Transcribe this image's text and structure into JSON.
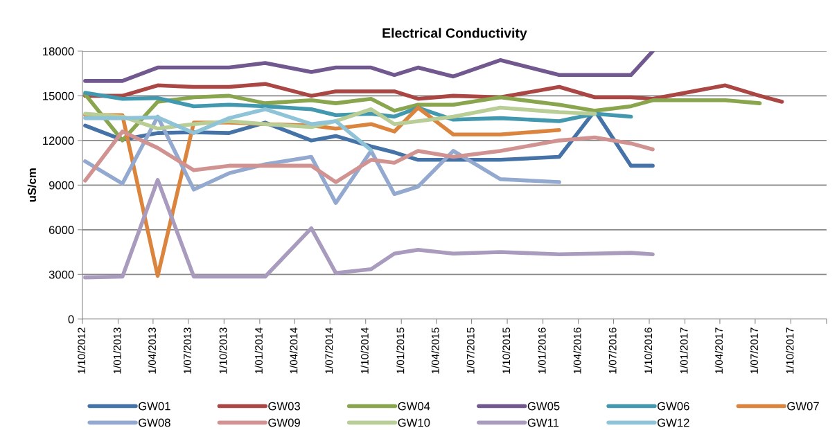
{
  "chart_data": {
    "type": "line",
    "title": "Electrical Conductivity",
    "ylabel": "uS/cm",
    "x": [
      "2012-10-08",
      "2013-01-12",
      "2013-04-13",
      "2013-07-15",
      "2013-10-14",
      "2014-01-15",
      "2014-05-14",
      "2014-07-16",
      "2014-10-15",
      "2014-12-14",
      "2015-02-13",
      "2015-05-15",
      "2015-09-13",
      "2016-02-12",
      "2016-05-14",
      "2016-08-15",
      "2016-10-10",
      "2017-04-15",
      "2017-07-13",
      "2017-09-08"
    ],
    "series": [
      {
        "name": "GW01",
        "color": "#4572a7",
        "values": [
          13000,
          12050,
          12500,
          12550,
          12500,
          13200,
          12000,
          12300,
          11600,
          11200,
          10700,
          10700,
          10700,
          10900,
          14000,
          10300,
          10300,
          null,
          null,
          null
        ]
      },
      {
        "name": "GW03",
        "color": "#aa4643",
        "values": [
          15000,
          15000,
          15700,
          15600,
          15600,
          15800,
          15000,
          15300,
          15300,
          15300,
          14800,
          15000,
          14900,
          15600,
          14900,
          14900,
          14800,
          15700,
          15000,
          14600
        ]
      },
      {
        "name": "GW04",
        "color": "#89a54e",
        "values": [
          15100,
          12000,
          14600,
          14900,
          15000,
          14500,
          14700,
          14500,
          14800,
          14000,
          14400,
          14400,
          14900,
          14400,
          14000,
          14300,
          14700,
          14700,
          14500,
          null
        ]
      },
      {
        "name": "GW05",
        "color": "#71588f",
        "values": [
          16000,
          16000,
          16900,
          16900,
          16900,
          17200,
          16600,
          16900,
          16900,
          16400,
          16900,
          16300,
          17400,
          16400,
          16400,
          16400,
          18000,
          null,
          null,
          null
        ]
      },
      {
        "name": "GW06",
        "color": "#4198af",
        "values": [
          15200,
          14800,
          14850,
          14300,
          14400,
          14300,
          14100,
          13700,
          13800,
          13600,
          14200,
          13400,
          13500,
          13300,
          13800,
          13600,
          null,
          null,
          null,
          null
        ]
      },
      {
        "name": "GW07",
        "color": "#db843d",
        "values": [
          13700,
          13700,
          2900,
          13200,
          13200,
          13100,
          13000,
          12800,
          13100,
          12600,
          14200,
          12400,
          12400,
          12700,
          null,
          null,
          null,
          null,
          null,
          null
        ]
      },
      {
        "name": "GW08",
        "color": "#93a9cf",
        "values": [
          10600,
          9100,
          13600,
          8700,
          9800,
          10400,
          10900,
          7800,
          11300,
          8400,
          8900,
          11300,
          9400,
          9200,
          null,
          null,
          null,
          null,
          null,
          null
        ]
      },
      {
        "name": "GW09",
        "color": "#d19392",
        "values": [
          9300,
          12600,
          11500,
          10000,
          10300,
          10300,
          10300,
          9200,
          10700,
          10500,
          11300,
          10900,
          11300,
          12000,
          12200,
          11800,
          11400,
          null,
          null,
          null
        ]
      },
      {
        "name": "GW10",
        "color": "#b9cd96",
        "values": [
          13800,
          13600,
          12800,
          13100,
          13300,
          13100,
          12900,
          13300,
          14100,
          13100,
          13300,
          13600,
          14200,
          13900,
          13800,
          null,
          null,
          null,
          null,
          null
        ]
      },
      {
        "name": "GW11",
        "color": "#a99bbd",
        "values": [
          2800,
          2850,
          9350,
          2850,
          2850,
          2850,
          6100,
          3100,
          3350,
          4400,
          4650,
          4400,
          4500,
          4350,
          4400,
          4450,
          4350,
          null,
          null,
          null
        ]
      },
      {
        "name": "GW12",
        "color": "#8ec3d8",
        "values": [
          13500,
          13500,
          13550,
          12500,
          13500,
          14100,
          13100,
          13300,
          11350,
          null,
          null,
          null,
          null,
          null,
          null,
          null,
          null,
          null,
          null,
          null
        ]
      }
    ],
    "xlim": [
      "2012-10-01",
      "2018-01-01"
    ],
    "xticks": [
      {
        "value": "2012-10-01",
        "label": "1/10/2012"
      },
      {
        "value": "2013-01-01",
        "label": "1/01/2013"
      },
      {
        "value": "2013-04-01",
        "label": "1/04/2013"
      },
      {
        "value": "2013-07-01",
        "label": "1/07/2013"
      },
      {
        "value": "2013-10-01",
        "label": "1/10/2013"
      },
      {
        "value": "2014-01-01",
        "label": "1/01/2014"
      },
      {
        "value": "2014-04-01",
        "label": "1/04/2014"
      },
      {
        "value": "2014-07-01",
        "label": "1/07/2014"
      },
      {
        "value": "2014-10-01",
        "label": "1/10/2014"
      },
      {
        "value": "2015-01-01",
        "label": "1/01/2015"
      },
      {
        "value": "2015-04-01",
        "label": "1/04/2015"
      },
      {
        "value": "2015-07-01",
        "label": "1/07/2015"
      },
      {
        "value": "2015-10-01",
        "label": "1/10/2015"
      },
      {
        "value": "2016-01-01",
        "label": "1/01/2016"
      },
      {
        "value": "2016-04-01",
        "label": "1/04/2016"
      },
      {
        "value": "2016-07-01",
        "label": "1/07/2016"
      },
      {
        "value": "2016-10-01",
        "label": "1/10/2016"
      },
      {
        "value": "2017-01-01",
        "label": "1/01/2017"
      },
      {
        "value": "2017-04-01",
        "label": "1/04/2017"
      },
      {
        "value": "2017-07-01",
        "label": "1/07/2017"
      },
      {
        "value": "2017-10-01",
        "label": "1/10/2017"
      },
      {
        "value": "2018-01-01",
        "label": null
      }
    ],
    "ylim": [
      0,
      18000
    ],
    "yticks": [
      0,
      3000,
      6000,
      9000,
      12000,
      15000,
      18000
    ],
    "grid": "y",
    "legend": "bottom",
    "marker": "none",
    "line_style": "solid"
  }
}
